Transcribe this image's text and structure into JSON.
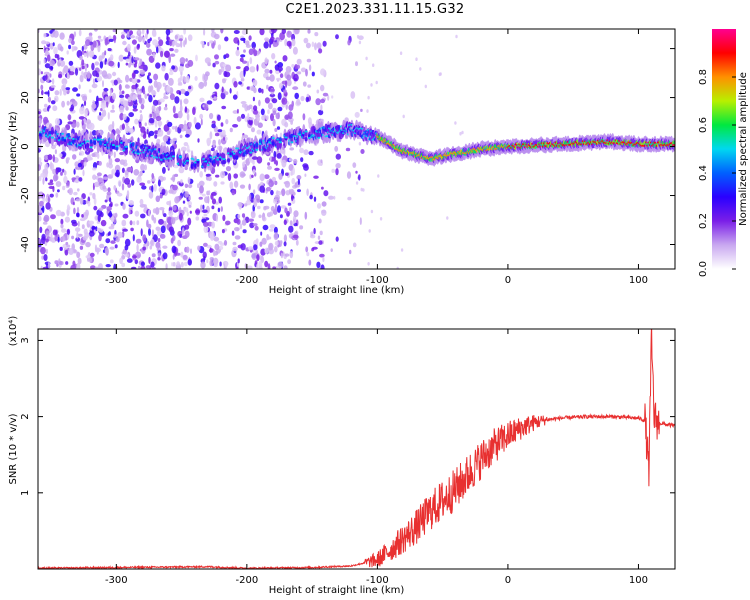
{
  "title": "C2E1.2023.331.11.15.G32",
  "chart_data": [
    {
      "type": "heatmap",
      "xlabel": "Height of straight line (km)",
      "ylabel": "Frequency (Hz)",
      "xlim": [
        -360,
        128
      ],
      "ylim": [
        -50,
        48
      ],
      "xticks": [
        -300,
        -200,
        -100,
        0,
        100
      ],
      "yticks": [
        -40,
        -20,
        0,
        20,
        40
      ],
      "colorbar": {
        "label": "Normalized spectral amplitude",
        "range": [
          0,
          1
        ],
        "ticks": [
          0.0,
          0.2,
          0.4,
          0.6,
          0.8
        ],
        "colors": [
          "#ffffff",
          "#c9a8f0",
          "#7b1fe8",
          "#2a00ff",
          "#0060ff",
          "#00d8f0",
          "#00e840",
          "#b8f000",
          "#ff9000",
          "#ff0000",
          "#ff0090"
        ]
      },
      "ridge": {
        "x": [
          -360,
          -330,
          -300,
          -270,
          -240,
          -220,
          -200,
          -160,
          -140,
          -120,
          -100,
          -80,
          -60,
          -40,
          -20,
          0,
          40,
          80,
          100,
          128
        ],
        "y": [
          6,
          2,
          1,
          -3,
          -7,
          -5,
          -1,
          4,
          6,
          7,
          4,
          -2,
          -5,
          -3,
          -1,
          0,
          1,
          2,
          1,
          1
        ]
      }
    },
    {
      "type": "line",
      "xlabel": "Height of straight line (km)",
      "ylabel": "SNR (10 * v/v)",
      "scale_label": "(x10⁴)",
      "xlim": [
        -360,
        128
      ],
      "ylim": [
        0,
        3.15
      ],
      "xticks": [
        -300,
        -200,
        -100,
        0,
        100
      ],
      "yticks": [
        1,
        2,
        3
      ],
      "color": "#e83030",
      "x": [
        -360,
        -300,
        -230,
        -200,
        -150,
        -120,
        -100,
        -90,
        -80,
        -70,
        -60,
        -50,
        -40,
        -30,
        -20,
        -10,
        0,
        10,
        20,
        30,
        40,
        60,
        80,
        100,
        105,
        108,
        110,
        112,
        115,
        120,
        128
      ],
      "y": [
        0.01,
        0.02,
        0.03,
        0.01,
        0.02,
        0.04,
        0.12,
        0.25,
        0.4,
        0.55,
        0.75,
        0.9,
        1.05,
        1.25,
        1.45,
        1.62,
        1.75,
        1.85,
        1.92,
        1.96,
        1.98,
        2.0,
        2.0,
        1.98,
        1.95,
        1.3,
        3.05,
        2.0,
        1.92,
        1.9,
        1.88
      ]
    }
  ]
}
